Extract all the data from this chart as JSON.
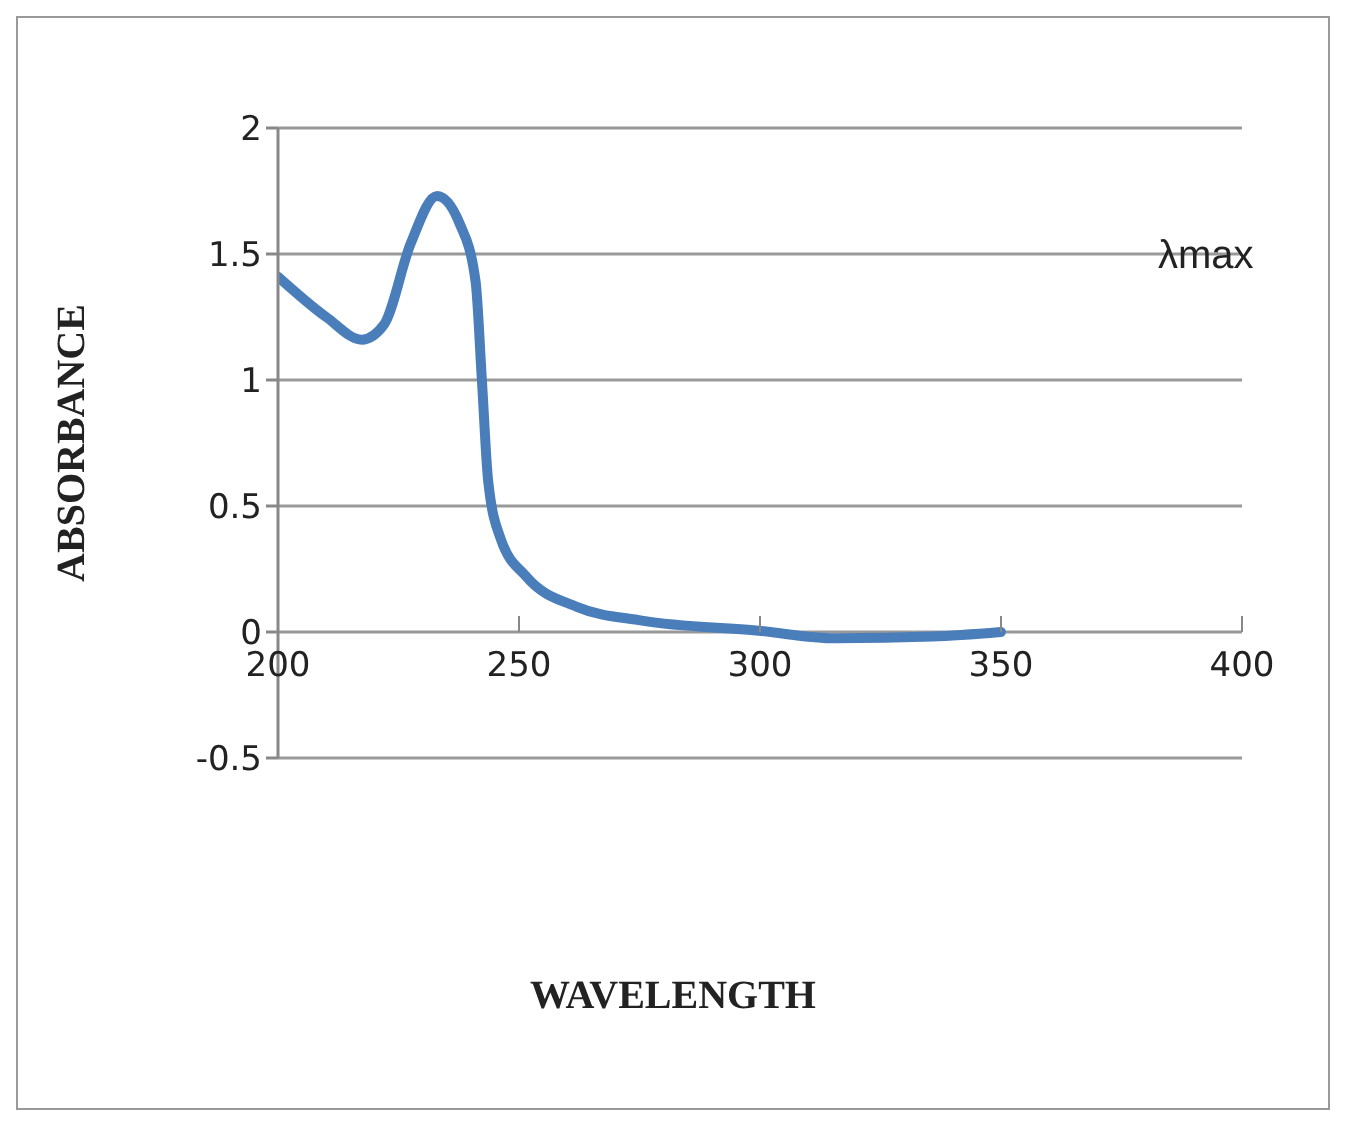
{
  "chart_data": {
    "type": "line",
    "xlabel": "WAVELENGTH",
    "ylabel": "ABSORBANCE",
    "annotations": [
      "λmax"
    ],
    "series": [
      {
        "color": "#4a7ebb",
        "x": [
          200,
          210,
          217.4,
          222,
          227.5,
          233,
          237.7,
          241,
          242.3,
          243.6,
          246.2,
          251.5,
          262,
          275.5,
          299.7,
          315.7,
          335.8,
          350
        ],
        "values": [
          1.41,
          1.25,
          1.16,
          1.22,
          1.54,
          1.73,
          1.62,
          1.39,
          1.0,
          0.6,
          0.37,
          0.22,
          0.1,
          0.045,
          0.005,
          -0.025,
          -0.018,
          0
        ]
      }
    ],
    "xlim": [
      200,
      400
    ],
    "xticks": [
      200,
      250,
      300,
      350,
      400
    ],
    "ylim": [
      -0.5,
      2
    ],
    "yticks": [
      -0.5,
      0,
      0.5,
      1,
      1.5,
      2
    ],
    "grid": "y",
    "legend": false,
    "marker": "none",
    "line_style": "solid"
  }
}
